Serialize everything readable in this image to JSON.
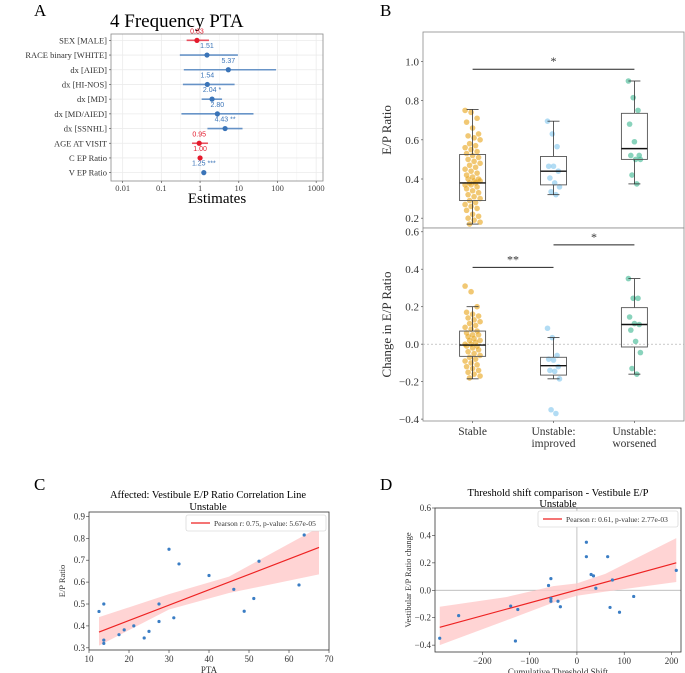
{
  "panel_letters": {
    "a": "A",
    "b": "B",
    "c": "C",
    "d": "D"
  },
  "chart_data": [
    {
      "id": "A",
      "type": "forest",
      "title": "4 Frequency PTA",
      "xlabel": "Estimates",
      "xscale": "log10",
      "xlim": [
        0.005,
        1500
      ],
      "xticks": [
        0.01,
        0.1,
        1,
        10,
        100,
        1000
      ],
      "xtick_labels": [
        "0.01",
        "0.1",
        "1",
        "10",
        "100",
        "1000"
      ],
      "grid": true,
      "colors": {
        "positive": "#3a74b8",
        "negative": "#e41a2c"
      },
      "rows": [
        {
          "label": "SEX [MALE]",
          "estimate": 0.83,
          "ci": [
            0.45,
            1.7
          ],
          "text": "0.83",
          "sign": "negative"
        },
        {
          "label": "RACE binary [WHITE]",
          "estimate": 1.51,
          "ci": [
            0.3,
            9.5
          ],
          "text": "1.51",
          "sign": "positive"
        },
        {
          "label": "dx [AIED]",
          "estimate": 5.37,
          "ci": [
            0.38,
            92
          ],
          "text": "5.37",
          "sign": "positive"
        },
        {
          "label": "dx [HI-NOS]",
          "estimate": 1.54,
          "ci": [
            0.36,
            7.8
          ],
          "text": "1.54",
          "sign": "positive"
        },
        {
          "label": "dx [MD]",
          "estimate": 2.04,
          "ci": [
            1.1,
            3.7
          ],
          "text": "2.04 *",
          "sign": "positive"
        },
        {
          "label": "dx [MD/AIED]",
          "estimate": 2.8,
          "ci": [
            0.33,
            24
          ],
          "text": "2.80",
          "sign": "positive"
        },
        {
          "label": "dx [SSNHL]",
          "estimate": 4.43,
          "ci": [
            1.55,
            12.5
          ],
          "text": "4.43 **",
          "sign": "positive"
        },
        {
          "label": "AGE AT VISIT",
          "estimate": 0.95,
          "ci": [
            0.62,
            1.6
          ],
          "text": "0.95",
          "sign": "negative"
        },
        {
          "label": "C EP Ratio",
          "estimate": 1.0,
          "ci": [
            0.97,
            1.03
          ],
          "text": "1.00",
          "sign": "negative"
        },
        {
          "label": "V EP Ratio",
          "estimate": 1.25,
          "ci": [
            1.18,
            1.32
          ],
          "text": "1.25 ***",
          "sign": "positive"
        }
      ]
    },
    {
      "id": "B-top",
      "type": "box",
      "ylabel": "E/P Ratio",
      "ylim": [
        0.15,
        1.15
      ],
      "yticks": [
        0.2,
        0.4,
        0.6,
        0.8,
        1.0
      ],
      "ytick_labels": [
        "0.2",
        "0.4",
        "0.6",
        "0.8",
        "1.0"
      ],
      "categories": [
        "Stable",
        "Unstable: improved",
        "Unstable: worsened"
      ],
      "colors": [
        "#e8a317",
        "#7fc4ec",
        "#3bb58f"
      ],
      "boxes": [
        {
          "whisker_low": 0.17,
          "q1": 0.29,
          "median": 0.38,
          "q3": 0.525,
          "whisker_high": 0.755
        },
        {
          "whisker_low": 0.32,
          "q1": 0.37,
          "median": 0.44,
          "q3": 0.515,
          "whisker_high": 0.695
        },
        {
          "whisker_low": 0.375,
          "q1": 0.5,
          "median": 0.555,
          "q3": 0.735,
          "whisker_high": 0.9
        }
      ],
      "points": [
        [
          0.75,
          0.74,
          0.71,
          0.69,
          0.66,
          0.63,
          0.62,
          0.61,
          0.6,
          0.58,
          0.57,
          0.56,
          0.55,
          0.54,
          0.53,
          0.52,
          0.51,
          0.5,
          0.49,
          0.48,
          0.47,
          0.46,
          0.45,
          0.44,
          0.43,
          0.42,
          0.41,
          0.4,
          0.4,
          0.39,
          0.39,
          0.38,
          0.38,
          0.37,
          0.37,
          0.36,
          0.35,
          0.34,
          0.33,
          0.32,
          0.31,
          0.3,
          0.29,
          0.28,
          0.27,
          0.26,
          0.25,
          0.24,
          0.22,
          0.21,
          0.2,
          0.19,
          0.18,
          0.17
        ],
        [
          0.695,
          0.63,
          0.565,
          0.465,
          0.465,
          0.44,
          0.405,
          0.38,
          0.36,
          0.335,
          0.32
        ],
        [
          0.9,
          0.815,
          0.75,
          0.68,
          0.59,
          0.52,
          0.52,
          0.5,
          0.5,
          0.42,
          0.375
        ]
      ],
      "brackets": [
        {
          "from": 0,
          "to": 2,
          "y": 0.96,
          "label": "*"
        }
      ]
    },
    {
      "id": "B-bottom",
      "type": "box",
      "ylabel": "Change in E/P Ratio",
      "ylim": [
        -0.41,
        0.62
      ],
      "yticks": [
        -0.4,
        -0.2,
        0.0,
        0.2,
        0.4,
        0.6
      ],
      "ytick_labels": [
        "−0.4",
        "−0.2",
        "0.0",
        "0.2",
        "0.4",
        "0.6"
      ],
      "xtick_labels": [
        [
          "Stable"
        ],
        [
          "Unstable:",
          "improved"
        ],
        [
          "Unstable:",
          "worsened"
        ]
      ],
      "reference_line": 0.0,
      "colors": [
        "#e8a317",
        "#7fc4ec",
        "#3bb58f"
      ],
      "boxes": [
        {
          "whisker_low": -0.185,
          "q1": -0.065,
          "median": -0.005,
          "q3": 0.07,
          "whisker_high": 0.2
        },
        {
          "whisker_low": -0.185,
          "q1": -0.165,
          "median": -0.115,
          "q3": -0.07,
          "whisker_high": 0.035
        },
        {
          "whisker_low": -0.16,
          "q1": -0.015,
          "median": 0.105,
          "q3": 0.195,
          "whisker_high": 0.35
        }
      ],
      "points": [
        [
          0.31,
          0.28,
          0.2,
          0.17,
          0.16,
          0.15,
          0.14,
          0.13,
          0.12,
          0.11,
          0.1,
          0.09,
          0.08,
          0.07,
          0.06,
          0.05,
          0.05,
          0.04,
          0.03,
          0.02,
          0.02,
          0.01,
          0.0,
          0.0,
          -0.01,
          -0.01,
          -0.02,
          -0.03,
          -0.04,
          -0.05,
          -0.06,
          -0.07,
          -0.08,
          -0.09,
          -0.1,
          -0.11,
          -0.12,
          -0.13,
          -0.14,
          -0.15,
          -0.16,
          -0.17,
          -0.18
        ],
        [
          0.085,
          0.035,
          -0.06,
          -0.08,
          -0.085,
          -0.12,
          -0.14,
          -0.145,
          -0.185,
          -0.35,
          -0.37
        ],
        [
          0.35,
          0.245,
          0.245,
          0.145,
          0.11,
          0.105,
          0.075,
          0.015,
          -0.045,
          -0.13,
          -0.16
        ]
      ],
      "brackets": [
        {
          "from": 0,
          "to": 1,
          "y": 0.41,
          "label": "**"
        },
        {
          "from": 1,
          "to": 2,
          "y": 0.53,
          "label": "*"
        }
      ]
    },
    {
      "id": "C",
      "type": "scatter",
      "title": "Affected: Vestibule E/P Ratio Correlation Line",
      "subtitle": "Unstable",
      "xlabel": "PTA",
      "ylabel": "E/P Ratio",
      "xlim": [
        10,
        70
      ],
      "ylim": [
        0.29,
        0.92
      ],
      "xticks": [
        10,
        20,
        30,
        40,
        50,
        60,
        70
      ],
      "yticks": [
        0.3,
        0.4,
        0.5,
        0.6,
        0.7,
        0.8,
        0.9
      ],
      "ytick_labels": [
        "0.3",
        "0.4",
        "0.5",
        "0.6",
        "0.7",
        "0.8",
        "0.9"
      ],
      "legend": {
        "label": "Pearson r: 0.75, p-value: 5.67e-05",
        "position": "top-right"
      },
      "point_color": "#3a7dc4",
      "line_color": "#ee2222",
      "band_color": "#ffc9c9",
      "fit": {
        "x": [
          12.5,
          67.5
        ],
        "y": [
          0.372,
          0.758
        ]
      },
      "band": {
        "x": [
          12.5,
          30,
          45,
          67.5
        ],
        "upper": [
          0.44,
          0.545,
          0.625,
          0.85
        ],
        "lower": [
          0.31,
          0.475,
          0.55,
          0.635
        ]
      },
      "points": [
        [
          12.5,
          0.466
        ],
        [
          13.7,
          0.5
        ],
        [
          13.7,
          0.335
        ],
        [
          13.7,
          0.32
        ],
        [
          17.5,
          0.36
        ],
        [
          18.8,
          0.382
        ],
        [
          21.2,
          0.4
        ],
        [
          23.8,
          0.345
        ],
        [
          25.0,
          0.375
        ],
        [
          27.5,
          0.5
        ],
        [
          27.5,
          0.42
        ],
        [
          30.0,
          0.75
        ],
        [
          31.2,
          0.437
        ],
        [
          32.5,
          0.683
        ],
        [
          40.0,
          0.63
        ],
        [
          46.2,
          0.567
        ],
        [
          48.8,
          0.467
        ],
        [
          51.2,
          0.525
        ],
        [
          52.5,
          0.695
        ],
        [
          62.5,
          0.587
        ],
        [
          63.8,
          0.815
        ]
      ]
    },
    {
      "id": "D",
      "type": "scatter",
      "title": "Threshold shift comparison - Vestibule E/P",
      "subtitle": "Unstable",
      "xlabel": "Cumulative Threshold Shift",
      "ylabel": "Vestibular E/P Ratio change",
      "xlim": [
        -300,
        220
      ],
      "ylim": [
        -0.45,
        0.6
      ],
      "xticks": [
        -200,
        -100,
        0,
        100,
        200
      ],
      "xtick_labels": [
        "−200",
        "−100",
        "0",
        "100",
        "200"
      ],
      "yticks": [
        -0.4,
        -0.2,
        0.0,
        0.2,
        0.4,
        0.6
      ],
      "ytick_labels": [
        "−0.4",
        "−0.2",
        "0.0",
        "0.2",
        "0.4",
        "0.6"
      ],
      "reference_lines": {
        "x": 0,
        "y": 0
      },
      "legend": {
        "label": "Pearson r: 0.61, p-value: 2.77e-03",
        "position": "top-right"
      },
      "point_color": "#3a7dc4",
      "line_color": "#ee2222",
      "band_color": "#ffc9c9",
      "fit": {
        "x": [
          -290,
          210
        ],
        "y": [
          -0.27,
          0.2
        ]
      },
      "band": {
        "x": [
          -290,
          -150,
          -50,
          0,
          60,
          210
        ],
        "upper": [
          -0.12,
          -0.05,
          0.03,
          0.05,
          0.12,
          0.38
        ],
        "lower": [
          -0.4,
          -0.22,
          -0.09,
          -0.04,
          -0.01,
          0.06
        ]
      },
      "points": [
        [
          -290,
          -0.35
        ],
        [
          -250,
          -0.185
        ],
        [
          -140,
          -0.115
        ],
        [
          -130,
          -0.37
        ],
        [
          -125,
          -0.14
        ],
        [
          -60,
          0.035
        ],
        [
          -55,
          0.085
        ],
        [
          -55,
          -0.06
        ],
        [
          -55,
          -0.08
        ],
        [
          -40,
          -0.08
        ],
        [
          -35,
          -0.12
        ],
        [
          20,
          0.35
        ],
        [
          20,
          0.245
        ],
        [
          30,
          0.115
        ],
        [
          35,
          0.105
        ],
        [
          40,
          0.015
        ],
        [
          65,
          0.245
        ],
        [
          70,
          -0.125
        ],
        [
          75,
          0.075
        ],
        [
          90,
          -0.16
        ],
        [
          120,
          -0.045
        ],
        [
          210,
          0.145
        ]
      ]
    }
  ]
}
